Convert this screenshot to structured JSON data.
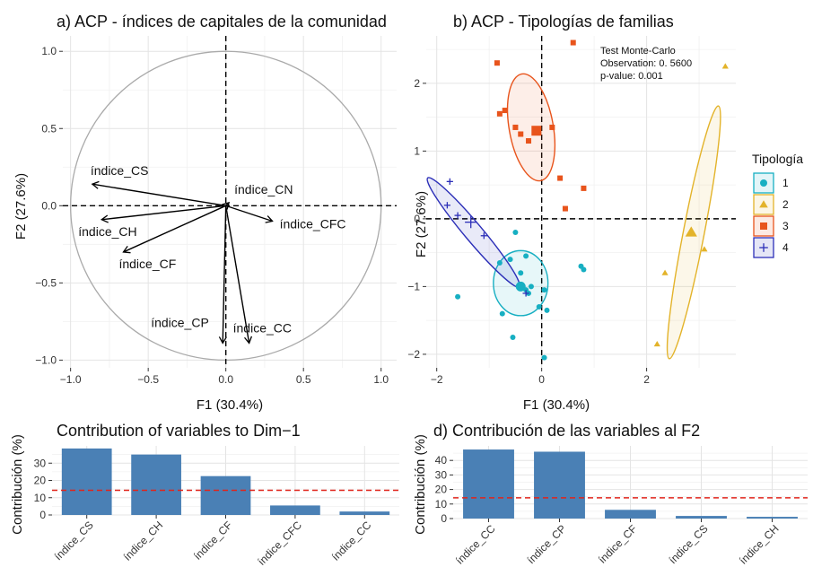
{
  "chart_data": [
    {
      "id": "a",
      "type": "pca-variables",
      "title": "a) ACP - índices de capitales de la comunidad",
      "xlabel": "F1 (30.4%)",
      "ylabel": "F2 (27.6%)",
      "xlim": [
        -1.05,
        1.1
      ],
      "ylim": [
        -1.05,
        1.1
      ],
      "xticks": [
        -1.0,
        -0.5,
        0.0,
        0.5,
        1.0
      ],
      "yticks": [
        1.0,
        0.5,
        0.0,
        -0.5,
        -1.0
      ],
      "xtick_labels": [
        "−1.0",
        "−0.5",
        "0.0",
        "0.5",
        "1.0"
      ],
      "ytick_labels": [
        "1.0",
        "0.5",
        "0.0",
        "−0.5",
        "−1.0"
      ],
      "circle_radius": 1.0,
      "grid": true,
      "vectors": [
        {
          "name": "índice_CS",
          "x": -0.86,
          "y": 0.14
        },
        {
          "name": "índice_CN",
          "x": 0.02,
          "y": 0.02
        },
        {
          "name": "índice_CFC",
          "x": 0.3,
          "y": -0.1
        },
        {
          "name": "índice_CH",
          "x": -0.8,
          "y": -0.09
        },
        {
          "name": "índice_CF",
          "x": -0.66,
          "y": -0.3
        },
        {
          "name": "índice_CP",
          "x": -0.02,
          "y": -0.89
        },
        {
          "name": "índice_CC",
          "x": 0.15,
          "y": -0.89
        }
      ]
    },
    {
      "id": "b",
      "type": "scatter",
      "title": "b) ACP - Tipologías de familias",
      "xlabel": "F1 (30.4%)",
      "ylabel": "F2 (27.6%)",
      "xlim": [
        -2.2,
        3.7
      ],
      "ylim": [
        -2.2,
        2.7
      ],
      "xticks": [
        -2,
        0,
        2
      ],
      "yticks": [
        2,
        1,
        0,
        -1,
        -2
      ],
      "xtick_labels": [
        "−2",
        "0",
        "2"
      ],
      "ytick_labels": [
        "2",
        "1",
        "0",
        "−1",
        "−2"
      ],
      "grid": true,
      "annotation": [
        "Test Monte-Carlo",
        "Observation: 0. 5600",
        "p-value: 0.001"
      ],
      "legend": {
        "title": "Tipología",
        "position": "right"
      },
      "series": [
        {
          "name": "1",
          "color": "#17AFC2",
          "shape": "circle",
          "points": [
            [
              -0.5,
              -0.2
            ],
            [
              -0.6,
              -0.6
            ],
            [
              -0.3,
              -0.55
            ],
            [
              -0.8,
              -0.65
            ],
            [
              -0.4,
              -0.8
            ],
            [
              -0.2,
              -1.0
            ],
            [
              -0.3,
              -1.05
            ],
            [
              -0.25,
              -1.1
            ],
            [
              0.05,
              -1.05
            ],
            [
              0.1,
              -1.35
            ],
            [
              -0.75,
              -1.4
            ],
            [
              -0.55,
              -1.75
            ],
            [
              0.05,
              -2.05
            ],
            [
              -1.6,
              -1.15
            ],
            [
              0.75,
              -0.7
            ],
            [
              0.8,
              -0.75
            ],
            [
              -0.05,
              -1.3
            ]
          ],
          "centroid": [
            -0.4,
            -1.0
          ],
          "ellipse": {
            "cx": -0.4,
            "cy": -0.95,
            "rx": 0.52,
            "ry": 0.48,
            "angle": 0
          }
        },
        {
          "name": "2",
          "color": "#E3B32A",
          "shape": "triangle",
          "points": [
            [
              3.5,
              2.25
            ],
            [
              3.1,
              -0.45
            ],
            [
              2.35,
              -0.8
            ],
            [
              2.2,
              -1.85
            ]
          ],
          "centroid": [
            2.85,
            -0.2
          ],
          "ellipse": {
            "cx": 2.9,
            "cy": -0.2,
            "rx": 0.2,
            "ry": 1.9,
            "angle": 11
          }
        },
        {
          "name": "3",
          "color": "#E8541C",
          "shape": "square",
          "points": [
            [
              -0.85,
              2.3
            ],
            [
              0.6,
              2.6
            ],
            [
              -0.8,
              1.55
            ],
            [
              -0.7,
              1.6
            ],
            [
              -0.5,
              1.35
            ],
            [
              -0.4,
              1.25
            ],
            [
              0.2,
              1.35
            ],
            [
              -0.1,
              1.3
            ],
            [
              -0.25,
              1.15
            ],
            [
              0.35,
              0.6
            ],
            [
              0.8,
              0.45
            ],
            [
              0.45,
              0.15
            ]
          ],
          "centroid": [
            -0.1,
            1.3
          ],
          "ellipse": {
            "cx": -0.2,
            "cy": 1.35,
            "rx": 0.42,
            "ry": 0.8,
            "angle": -10
          }
        },
        {
          "name": "4",
          "color": "#2C2FB8",
          "shape": "plus",
          "points": [
            [
              -1.75,
              0.55
            ],
            [
              -1.8,
              0.2
            ],
            [
              -1.6,
              0.05
            ],
            [
              -1.1,
              -0.25
            ],
            [
              -0.3,
              -1.1
            ]
          ],
          "centroid": [
            -1.35,
            -0.05
          ],
          "ellipse": {
            "cx": -1.3,
            "cy": -0.2,
            "rx": 0.17,
            "ry": 1.05,
            "angle": -40
          }
        }
      ]
    },
    {
      "id": "c",
      "type": "bar",
      "title": "Contribution of variables to Dim−1",
      "ylabel": "Contribución (%)",
      "categories": [
        "índice_CS",
        "índice_CH",
        "índice_CF",
        "índice_CFC",
        "índice_CC"
      ],
      "values": [
        38.5,
        35,
        22.5,
        5.5,
        2
      ],
      "reference_line": 14.3,
      "ylim": [
        0,
        40
      ],
      "yticks": [
        0,
        10,
        20,
        30
      ],
      "ytick_labels": [
        "0",
        "10",
        "20",
        "30"
      ],
      "bar_color": "#4A80B5",
      "grid": true
    },
    {
      "id": "d",
      "type": "bar",
      "title": "d) Contribución de las variables al F2",
      "ylabel": "Contribución (%)",
      "categories": [
        "índice_CC",
        "índice_CP",
        "índice_CF",
        "índice_CS",
        "índice_CH"
      ],
      "values": [
        47.5,
        46,
        6,
        1.8,
        1.2
      ],
      "reference_line": 14.3,
      "ylim": [
        0,
        50
      ],
      "yticks": [
        0,
        10,
        20,
        30,
        40
      ],
      "ytick_labels": [
        "0",
        "10",
        "20",
        "30",
        "40"
      ],
      "bar_color": "#4A80B5",
      "grid": true
    }
  ]
}
